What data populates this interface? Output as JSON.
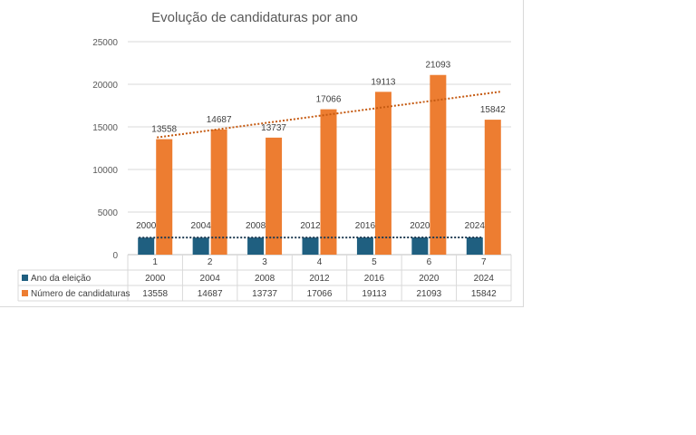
{
  "chart_data": {
    "type": "bar",
    "title": "Evolução de candidaturas por ano",
    "categories": [
      "1",
      "2",
      "3",
      "4",
      "5",
      "6",
      "7"
    ],
    "ylim": [
      0,
      25000
    ],
    "yticks": [
      "0",
      "5000",
      "10000",
      "15000",
      "20000",
      "25000"
    ],
    "grid": true,
    "trendlines": true,
    "legend_placement": "data table, left",
    "series": [
      {
        "name": "Ano da eleição",
        "color": "#1f5f80",
        "values": [
          2000,
          2004,
          2008,
          2012,
          2016,
          2020,
          2024
        ],
        "labels": [
          "2000",
          "2004",
          "2008",
          "2012",
          "2016",
          "2020",
          "2024"
        ]
      },
      {
        "name": "Número de candidaturas",
        "color": "#ed7d31",
        "values": [
          13558,
          14687,
          13737,
          17066,
          19113,
          21093,
          15842
        ],
        "labels": [
          "13558",
          "14687",
          "13737",
          "17066",
          "19113",
          "21093",
          "15842"
        ]
      }
    ]
  }
}
